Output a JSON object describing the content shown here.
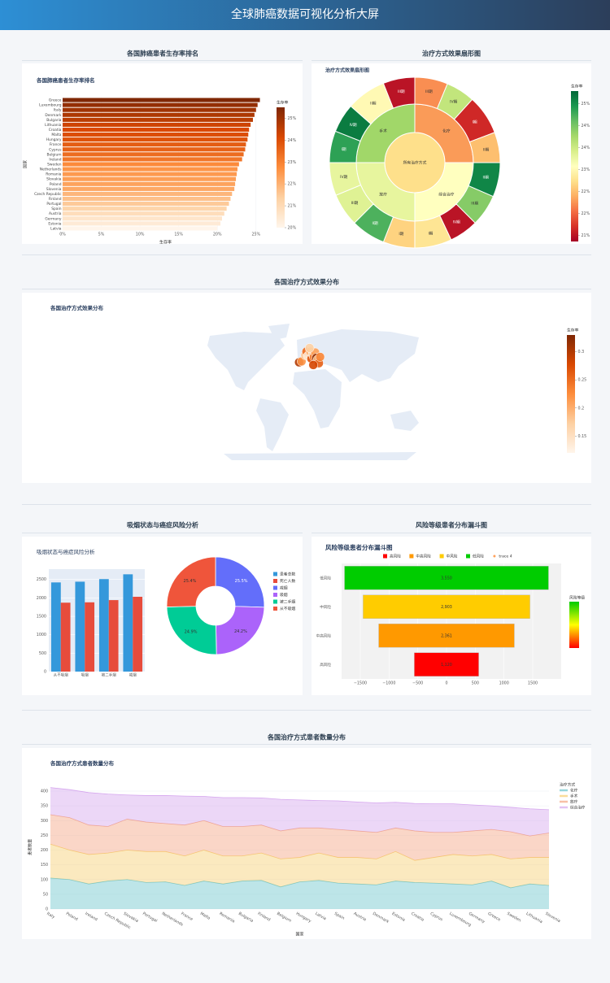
{
  "header": {
    "title": "全球肺癌数据可视化分析大屏"
  },
  "chart_data": [
    {
      "type": "hbar",
      "panel_title": "各国肺癌患者生存率排名",
      "title": "各国肺癌患者生存率排名",
      "categories": [
        "Greece",
        "Luxembourg",
        "Italy",
        "Denmark",
        "Bulgaria",
        "Lithuania",
        "Croatia",
        "Malta",
        "Hungary",
        "France",
        "Cyprus",
        "Belgium",
        "Ireland",
        "Sweden",
        "Netherlands",
        "Romania",
        "Slovakia",
        "Poland",
        "Slovenia",
        "Czech Republic",
        "Finland",
        "Portugal",
        "Spain",
        "Austria",
        "Germany",
        "Estonia",
        "Latvia"
      ],
      "values": [
        25.5,
        25.2,
        25.0,
        24.8,
        24.6,
        24.3,
        24.1,
        24.0,
        23.9,
        23.7,
        23.6,
        23.4,
        23.2,
        22.8,
        22.6,
        22.5,
        22.4,
        22.3,
        22.2,
        21.9,
        21.7,
        21.5,
        21.2,
        20.9,
        20.6,
        20.4,
        20.0
      ],
      "xlabel": "生存率",
      "ylabel": "国家",
      "xlim": [
        0,
        26.6
      ],
      "xticks": [
        {
          "value": 0,
          "label": "0%"
        },
        {
          "value": 5,
          "label": "5%"
        },
        {
          "value": 10,
          "label": "10%"
        },
        {
          "value": 15,
          "label": "15%"
        },
        {
          "value": 20,
          "label": "20%"
        },
        {
          "value": 25,
          "label": "25%"
        }
      ],
      "colorbar_title": "生存率",
      "clim": [
        20.0,
        25.5
      ],
      "cticks": [
        {
          "value": 20,
          "label": "20%"
        },
        {
          "value": 21,
          "label": "21%"
        },
        {
          "value": 22,
          "label": "22%"
        },
        {
          "value": 23,
          "label": "23%"
        },
        {
          "value": 24,
          "label": "24%"
        },
        {
          "value": 25,
          "label": "25%"
        }
      ],
      "colorscale": [
        "#fff5eb",
        "#fdd0a2",
        "#fd8d3c",
        "#d94801",
        "#7f2704"
      ]
    },
    {
      "type": "sunburst",
      "panel_title": "治疗方式效果扇形图",
      "title": "治疗方式效果扇形图",
      "root": "所有治疗方式",
      "groups": [
        {
          "name": "化疗",
          "value": 100,
          "survival": 21.9,
          "children": [
            {
              "name": "III期",
              "value": 25,
              "survival": 21.8
            },
            {
              "name": "IV期",
              "value": 22,
              "survival": 23.7
            },
            {
              "name": "I期",
              "value": 30,
              "survival": 21.0
            },
            {
              "name": "II期",
              "value": 23,
              "survival": 22.2
            }
          ]
        },
        {
          "name": "综合治疗",
          "value": 100,
          "survival": 23.0,
          "children": [
            {
              "name": "II期",
              "value": 26,
              "survival": 25.1
            },
            {
              "name": "III期",
              "value": 24,
              "survival": 24.2
            },
            {
              "name": "IV期",
              "value": 22,
              "survival": 20.8
            },
            {
              "name": "I期",
              "value": 28,
              "survival": 22.6
            }
          ]
        },
        {
          "name": "放疗",
          "value": 100,
          "survival": 23.3,
          "children": [
            {
              "name": "I期",
              "value": 24,
              "survival": 22.4
            },
            {
              "name": "II期",
              "value": 26,
              "survival": 24.6
            },
            {
              "name": "III期",
              "value": 25,
              "survival": 23.4
            },
            {
              "name": "IV期",
              "value": 25,
              "survival": 23.3
            }
          ]
        },
        {
          "name": "手术",
          "value": 100,
          "survival": 24.0,
          "children": [
            {
              "name": "I期",
              "value": 24,
              "survival": 24.8
            },
            {
              "name": "IV期",
              "value": 22,
              "survival": 25.2
            },
            {
              "name": "II期",
              "value": 30,
              "survival": 22.9
            },
            {
              "name": "III期",
              "value": 24,
              "survival": 20.8
            }
          ]
        }
      ],
      "colorbar_title": "生存率",
      "clim": [
        20.6,
        25.4
      ],
      "cticks": [
        {
          "value": 25,
          "label": "25%"
        },
        {
          "value": 24.3,
          "label": "24%"
        },
        {
          "value": 23.6,
          "label": "24%"
        },
        {
          "value": 22.9,
          "label": "23%"
        },
        {
          "value": 22.2,
          "label": "22%"
        },
        {
          "value": 21.5,
          "label": "22%"
        },
        {
          "value": 20.8,
          "label": "21%"
        }
      ],
      "colorscale": [
        "#a50026",
        "#d73027",
        "#f46d43",
        "#fdae61",
        "#fee08b",
        "#ffffbf",
        "#d9ef8b",
        "#a6d96a",
        "#66bd63",
        "#1a9850",
        "#006837"
      ]
    },
    {
      "type": "geo_scatter",
      "panel_title": "各国治疗方式效果分布",
      "title": "各国治疗方式效果分布",
      "lon": [
        -8,
        -4,
        2,
        4,
        6,
        10,
        12,
        14,
        16,
        18,
        20,
        22,
        24,
        26,
        15,
        9
      ],
      "lat": [
        39,
        40,
        47,
        51,
        46,
        51,
        43,
        48,
        45,
        50,
        44,
        42,
        38,
        45,
        36,
        55
      ],
      "values": [
        0.3,
        0.22,
        0.18,
        0.25,
        0.14,
        0.2,
        0.27,
        0.16,
        0.24,
        0.21,
        0.32,
        0.19,
        0.26,
        0.23,
        0.28,
        0.17
      ],
      "colorbar_title": "生存率",
      "clim": [
        0.12,
        0.33
      ],
      "cticks": [
        0.15,
        0.2,
        0.25,
        0.3
      ],
      "colorscale": [
        "#fff5eb",
        "#fdd0a2",
        "#fd8d3c",
        "#d94801",
        "#7f2704"
      ]
    },
    {
      "type": "bar_pie",
      "panel_title": "吸烟状态与癌症风险分析",
      "title": "吸烟状态与癌症风险分析",
      "bar": {
        "categories": [
          "从不吸烟",
          "吸烟",
          "被二手烟",
          "戒烟"
        ],
        "series": [
          {
            "name": "患者总数",
            "color": "#3498db",
            "values": [
              2420,
              2440,
              2510,
              2640
            ]
          },
          {
            "name": "死亡人数",
            "color": "#e74c3c",
            "values": [
              1870,
              1880,
              1940,
              2030
            ]
          }
        ],
        "ylim": [
          0,
          2780
        ],
        "yticks": [
          0,
          500,
          1000,
          1500,
          2000,
          2500
        ]
      },
      "pie": {
        "labels": [
          "戒烟",
          "吸烟",
          "被二手烟",
          "从不吸烟"
        ],
        "values": [
          25.5,
          24.2,
          24.9,
          25.4
        ],
        "value_labels": [
          "25.5%",
          "24.2%",
          "24.9%",
          "25.4%"
        ],
        "colors": [
          "#636efa",
          "#ab63fa",
          "#00cc96",
          "#ef553b"
        ]
      }
    },
    {
      "type": "funnel",
      "panel_title": "风险等级患者分布漏斗图",
      "title": "风险等级患者分布漏斗图",
      "categories": [
        "低风险",
        "中风险",
        "中高风险",
        "高风险"
      ],
      "values": [
        3550,
        2903,
        2361,
        1120
      ],
      "value_labels": [
        "3,550",
        "2,903",
        "2,361",
        "1,120"
      ],
      "colors": [
        "#00cc00",
        "#ffcc00",
        "#ff9900",
        "#ff0000"
      ],
      "legend": [
        "高风险",
        "中高风险",
        "中风险",
        "低风险",
        "trace 4"
      ],
      "legend_colors": [
        "#ff0000",
        "#ff9900",
        "#ffcc00",
        "#00cc00",
        "#ffa15a"
      ],
      "xlim": [
        -1825,
        1995
      ],
      "xticks": [
        {
          "value": -1500,
          "label": "−1500"
        },
        {
          "value": -1000,
          "label": "−1000"
        },
        {
          "value": -500,
          "label": "−500"
        },
        0,
        500,
        1000,
        1500
      ],
      "colorbar_title": "风险等级",
      "colorscale": [
        "#00cc00",
        "#ffff00",
        "#ff0000"
      ]
    },
    {
      "type": "stacked_area",
      "panel_title": "各国治疗方式患者数量分布",
      "title": "各国治疗方式患者数量分布",
      "categories": [
        "Italy",
        "Poland",
        "Ireland",
        "Czech Republic",
        "Slovakia",
        "Portugal",
        "Netherlands",
        "France",
        "Malta",
        "Romania",
        "Bulgaria",
        "Finland",
        "Belgium",
        "Hungary",
        "Latvia",
        "Spain",
        "Austria",
        "Denmark",
        "Estonia",
        "Croatia",
        "Cyprus",
        "Luxembourg",
        "Germany",
        "Greece",
        "Sweden",
        "Lithuania",
        "Slovenia"
      ],
      "legend_title": "治疗方式",
      "xlabel": "国家",
      "ylabel": "患者数量",
      "series": [
        {
          "name": "化疗",
          "color": "#6cc5cc",
          "values": [
            105,
            100,
            85,
            95,
            100,
            90,
            92,
            80,
            95,
            85,
            95,
            97,
            75,
            92,
            97,
            88,
            85,
            82,
            95,
            90,
            88,
            85,
            82,
            95,
            72,
            85,
            80
          ]
        },
        {
          "name": "手术",
          "color": "#f7cf70",
          "values": [
            115,
            100,
            100,
            95,
            100,
            105,
            103,
            100,
            105,
            95,
            85,
            93,
            95,
            83,
            93,
            87,
            90,
            88,
            100,
            75,
            87,
            100,
            98,
            90,
            98,
            90,
            95
          ]
        },
        {
          "name": "放疗",
          "color": "#f4a582",
          "values": [
            100,
            110,
            100,
            90,
            105,
            100,
            95,
            105,
            100,
            100,
            100,
            95,
            95,
            100,
            85,
            95,
            90,
            90,
            80,
            100,
            85,
            75,
            85,
            85,
            92,
            73,
            83
          ]
        },
        {
          "name": "综合治疗",
          "color": "#d5a6ee",
          "values": [
            92,
            95,
            110,
            110,
            82,
            90,
            95,
            98,
            82,
            98,
            98,
            92,
            107,
            95,
            93,
            97,
            98,
            100,
            87,
            93,
            97,
            97,
            88,
            80,
            83,
            92,
            79
          ]
        }
      ],
      "ylim": [
        0,
        420
      ],
      "yticks": [
        0,
        50,
        100,
        150,
        200,
        250,
        300,
        350,
        400
      ]
    }
  ]
}
